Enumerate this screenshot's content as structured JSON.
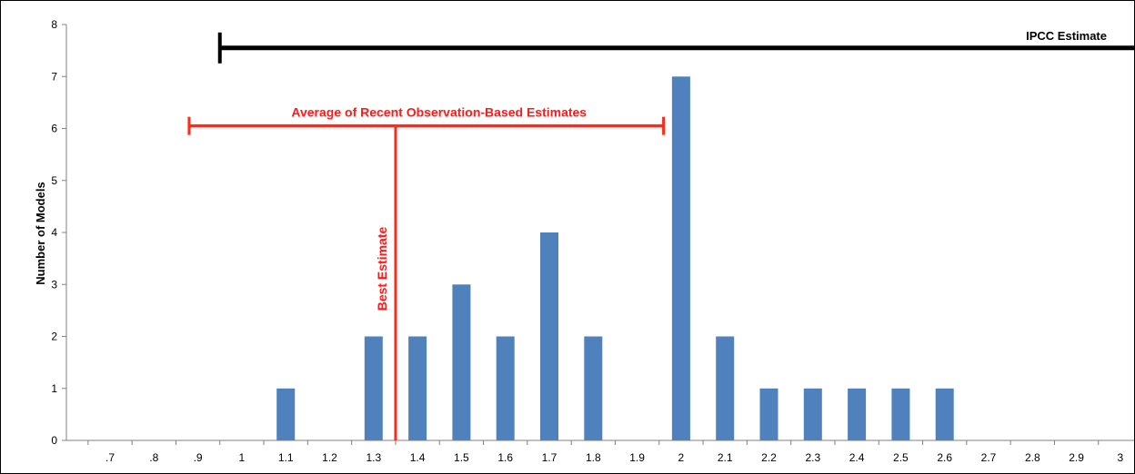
{
  "chart_data": {
    "type": "bar",
    "title": "",
    "xlabel": "",
    "ylabel": "Number of Models",
    "categories": [
      ".7",
      ".8",
      ".9",
      "1",
      "1.1",
      "1.2",
      "1.3",
      "1.4",
      "1.5",
      "1.6",
      "1.7",
      "1.8",
      "1.9",
      "2",
      "2.1",
      "2.2",
      "2.3",
      "2.4",
      "2.5",
      "2.6",
      "2.7",
      "2.8",
      "2.9",
      "3"
    ],
    "values": [
      0,
      0,
      0,
      0,
      1,
      0,
      2,
      2,
      3,
      2,
      4,
      2,
      0,
      7,
      2,
      1,
      1,
      1,
      1,
      1,
      0,
      0,
      0,
      0
    ],
    "ylim": [
      0,
      8
    ],
    "yticks": [
      "0",
      "1",
      "2",
      "3",
      "4",
      "5",
      "6",
      "7",
      "8"
    ],
    "grid": false,
    "legend": "none",
    "colors": {
      "bar": "#4f81bd",
      "observation": "#ff2a1a",
      "ipcc": "#000000"
    },
    "annotations": {
      "ipcc_range": {
        "label": "IPCC Estimate",
        "from": 0.95,
        "to": 3.05,
        "y": 7.55
      },
      "observation_range": {
        "label": "Average of Recent Observation-Based Estimates",
        "from": 0.88,
        "to": 1.96,
        "y": 6.05
      },
      "best_estimate": {
        "label": "Best Estimate",
        "x": 1.35
      }
    }
  }
}
